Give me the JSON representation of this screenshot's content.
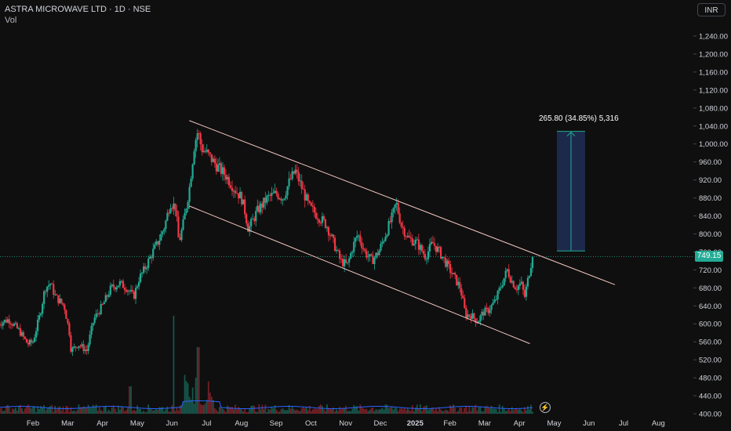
{
  "header": {
    "title": "ASTRA MICROWAVE LTD · 1D · NSE",
    "volume_label": "Vol"
  },
  "currency_button": {
    "label": "INR"
  },
  "last_price": {
    "label": "749.15",
    "value": 749.15
  },
  "measure": {
    "label": "265.80 (34.85%) 5,316",
    "from": 762,
    "to": 1028
  },
  "colors": {
    "up": "#22ab94",
    "down": "#f23645",
    "channel": "#f4c7c3",
    "measure_fill": "#1f2e56",
    "measure_line": "#22ab94",
    "volume_avg": "#2962ff"
  },
  "chart_data": {
    "type": "candlestick",
    "title": "ASTRA MICROWAVE LTD · 1D · NSE",
    "ylim": [
      400,
      1280
    ],
    "y_ticks": [
      400,
      440,
      480,
      520,
      560,
      600,
      640,
      680,
      720,
      760,
      800,
      840,
      880,
      920,
      960,
      1000,
      1040,
      1080,
      1120,
      1160,
      1200,
      1240
    ],
    "y_tick_labels": [
      "400.00",
      "440.00",
      "480.00",
      "520.00",
      "560.00",
      "600.00",
      "640.00",
      "680.00",
      "720.00",
      "760.00",
      "800.00",
      "840.00",
      "880.00",
      "920.00",
      "960.00",
      "1,000.00",
      "1,040.00",
      "1,080.00",
      "1,120.00",
      "1,160.00",
      "1,200.00",
      "1,240.00"
    ],
    "x_labels": [
      "Feb",
      "Mar",
      "Apr",
      "May",
      "Jun",
      "Jul",
      "Aug",
      "Sep",
      "Oct",
      "Nov",
      "Dec",
      "2025",
      "Feb",
      "Mar",
      "Apr",
      "May",
      "Jun",
      "Jul",
      "Aug"
    ],
    "x_label_months": [
      1,
      2,
      3,
      4,
      5,
      6,
      7,
      8,
      9,
      10,
      11,
      12,
      13,
      14,
      15,
      16,
      17,
      18,
      19
    ],
    "bold_labels": [
      "2025"
    ],
    "price_path": [
      [
        0.0,
        600
      ],
      [
        0.3,
        610
      ],
      [
        0.6,
        585
      ],
      [
        0.85,
        555
      ],
      [
        1.0,
        560
      ],
      [
        1.2,
        620
      ],
      [
        1.35,
        680
      ],
      [
        1.5,
        690
      ],
      [
        1.65,
        660
      ],
      [
        1.9,
        640
      ],
      [
        2.05,
        580
      ],
      [
        2.1,
        540
      ],
      [
        2.3,
        555
      ],
      [
        2.55,
        540
      ],
      [
        2.75,
        610
      ],
      [
        3.0,
        640
      ],
      [
        3.25,
        680
      ],
      [
        3.5,
        690
      ],
      [
        3.7,
        680
      ],
      [
        3.9,
        660
      ],
      [
        4.05,
        700
      ],
      [
        4.2,
        720
      ],
      [
        4.45,
        760
      ],
      [
        4.65,
        790
      ],
      [
        4.8,
        820
      ],
      [
        4.95,
        870
      ],
      [
        5.1,
        860
      ],
      [
        5.2,
        780
      ],
      [
        5.32,
        820
      ],
      [
        5.5,
        900
      ],
      [
        5.65,
        1000
      ],
      [
        5.75,
        1030
      ],
      [
        5.85,
        990
      ],
      [
        6.0,
        980
      ],
      [
        6.3,
        950
      ],
      [
        6.55,
        930
      ],
      [
        6.8,
        900
      ],
      [
        7.0,
        880
      ],
      [
        7.1,
        850
      ],
      [
        7.2,
        810
      ],
      [
        7.45,
        850
      ],
      [
        7.75,
        880
      ],
      [
        8.0,
        890
      ],
      [
        8.2,
        880
      ],
      [
        8.4,
        920
      ],
      [
        8.55,
        940
      ],
      [
        8.75,
        900
      ],
      [
        8.95,
        860
      ],
      [
        9.2,
        840
      ],
      [
        9.45,
        820
      ],
      [
        9.65,
        780
      ],
      [
        9.85,
        740
      ],
      [
        10.05,
        730
      ],
      [
        10.2,
        770
      ],
      [
        10.35,
        800
      ],
      [
        10.55,
        760
      ],
      [
        10.75,
        740
      ],
      [
        10.95,
        760
      ],
      [
        11.15,
        800
      ],
      [
        11.35,
        840
      ],
      [
        11.45,
        870
      ],
      [
        11.6,
        820
      ],
      [
        11.8,
        790
      ],
      [
        12.05,
        780
      ],
      [
        12.3,
        750
      ],
      [
        12.5,
        780
      ],
      [
        12.7,
        760
      ],
      [
        12.85,
        740
      ],
      [
        13.0,
        720
      ],
      [
        13.15,
        700
      ],
      [
        13.3,
        680
      ],
      [
        13.45,
        620
      ],
      [
        13.6,
        620
      ],
      [
        13.8,
        605
      ],
      [
        13.95,
        625
      ],
      [
        14.1,
        630
      ],
      [
        14.3,
        650
      ],
      [
        14.5,
        690
      ],
      [
        14.65,
        720
      ],
      [
        14.75,
        700
      ],
      [
        14.9,
        680
      ],
      [
        15.05,
        690
      ],
      [
        15.15,
        660
      ],
      [
        15.25,
        700
      ],
      [
        15.35,
        740
      ],
      [
        15.42,
        749.15
      ]
    ],
    "channel_upper": [
      [
        5.5,
        1052
      ],
      [
        17.75,
        687
      ]
    ],
    "channel_lower": [
      [
        5.5,
        862
      ],
      [
        15.3,
        556
      ]
    ],
    "last_price_line": 749.15
  }
}
